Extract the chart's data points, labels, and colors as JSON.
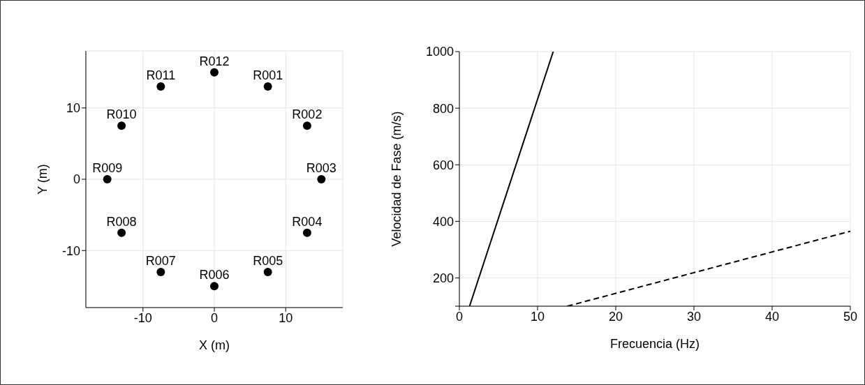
{
  "chart_data": [
    {
      "type": "scatter",
      "xlabel": "X (m)",
      "ylabel": "Y (m)",
      "xlim": [
        -18,
        18
      ],
      "ylim": [
        -18,
        18
      ],
      "xticks": [
        -10,
        0,
        10
      ],
      "yticks": [
        -10,
        0,
        10
      ],
      "grid": true,
      "marker": "circle",
      "series": [
        {
          "color": "#000000",
          "x": [
            7.5,
            13,
            15,
            13,
            7.5,
            0,
            -7.5,
            -13,
            -15,
            -13,
            -7.5,
            0
          ],
          "values": [
            13,
            7.5,
            0,
            -7.5,
            -13,
            -15,
            -13,
            -7.5,
            0,
            7.5,
            13,
            15
          ]
        }
      ],
      "annotations": [
        {
          "text": "R001",
          "x": 7.5,
          "y": 13
        },
        {
          "text": "R002",
          "x": 13,
          "y": 7.5
        },
        {
          "text": "R003",
          "x": 15,
          "y": 0
        },
        {
          "text": "R004",
          "x": 13,
          "y": -7.5
        },
        {
          "text": "R005",
          "x": 7.5,
          "y": -13
        },
        {
          "text": "R006",
          "x": 0,
          "y": -15
        },
        {
          "text": "R007",
          "x": -7.5,
          "y": -13
        },
        {
          "text": "R008",
          "x": -13,
          "y": -7.5
        },
        {
          "text": "R009",
          "x": -15,
          "y": 0
        },
        {
          "text": "R010",
          "x": -13,
          "y": 7.5
        },
        {
          "text": "R011",
          "x": -7.5,
          "y": 13
        },
        {
          "text": "R012",
          "x": 0,
          "y": 15
        }
      ]
    },
    {
      "type": "line",
      "xlabel": "Frecuencia (Hz)",
      "ylabel": "Velocidad de Fase (m/s)",
      "xlim": [
        0,
        50
      ],
      "ylim": [
        100,
        1000
      ],
      "xticks": [
        0,
        10,
        20,
        30,
        40,
        50
      ],
      "yticks": [
        {
          "value": 100,
          "label": null
        },
        200,
        400,
        600,
        800,
        1000
      ],
      "grid": true,
      "marker": "none",
      "series": [
        {
          "color": "#000000",
          "line_style": "solid",
          "x": [
            1.3,
            12
          ],
          "values": [
            100,
            1000
          ]
        },
        {
          "color": "#000000",
          "line_style": "dashed",
          "x": [
            13.8,
            50
          ],
          "values": [
            100,
            365
          ]
        }
      ]
    }
  ]
}
